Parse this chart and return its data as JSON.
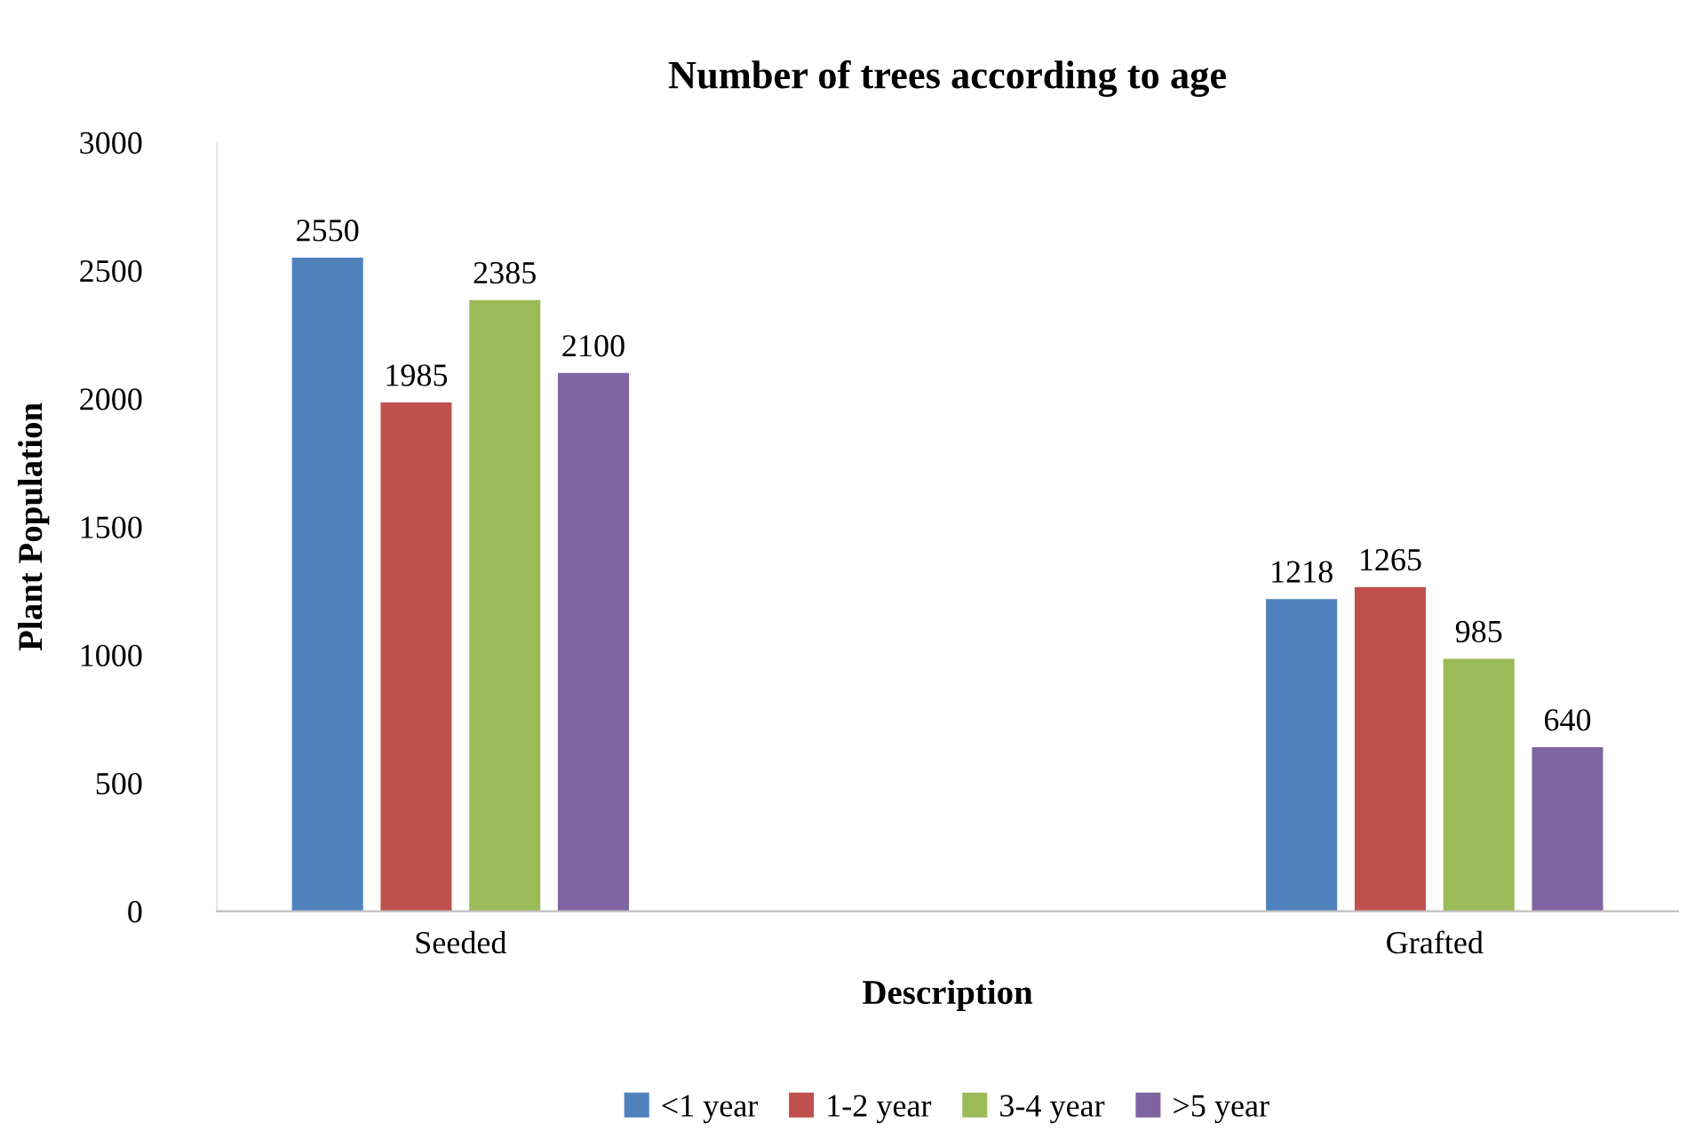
{
  "chart_data": {
    "type": "bar",
    "title": "Number of trees according to age",
    "xlabel": "Description",
    "ylabel": "Plant Population",
    "categories": [
      "Seeded",
      "Grafted"
    ],
    "series": [
      {
        "name": "<1 year",
        "color": "#4f81bd",
        "values": [
          2550,
          1218
        ]
      },
      {
        "name": "1-2 year",
        "color": "#c0504d",
        "values": [
          1985,
          1265
        ]
      },
      {
        "name": "3-4 year",
        "color": "#9bbb59",
        "values": [
          2385,
          985
        ]
      },
      {
        "name": ">5 year",
        "color": "#8064a2",
        "values": [
          2100,
          640
        ]
      }
    ],
    "ylim": [
      0,
      3000
    ],
    "yticks": [
      0,
      500,
      1000,
      1500,
      2000,
      2500,
      3000
    ],
    "data_labels": true,
    "grid": false,
    "legend": "bottom"
  }
}
